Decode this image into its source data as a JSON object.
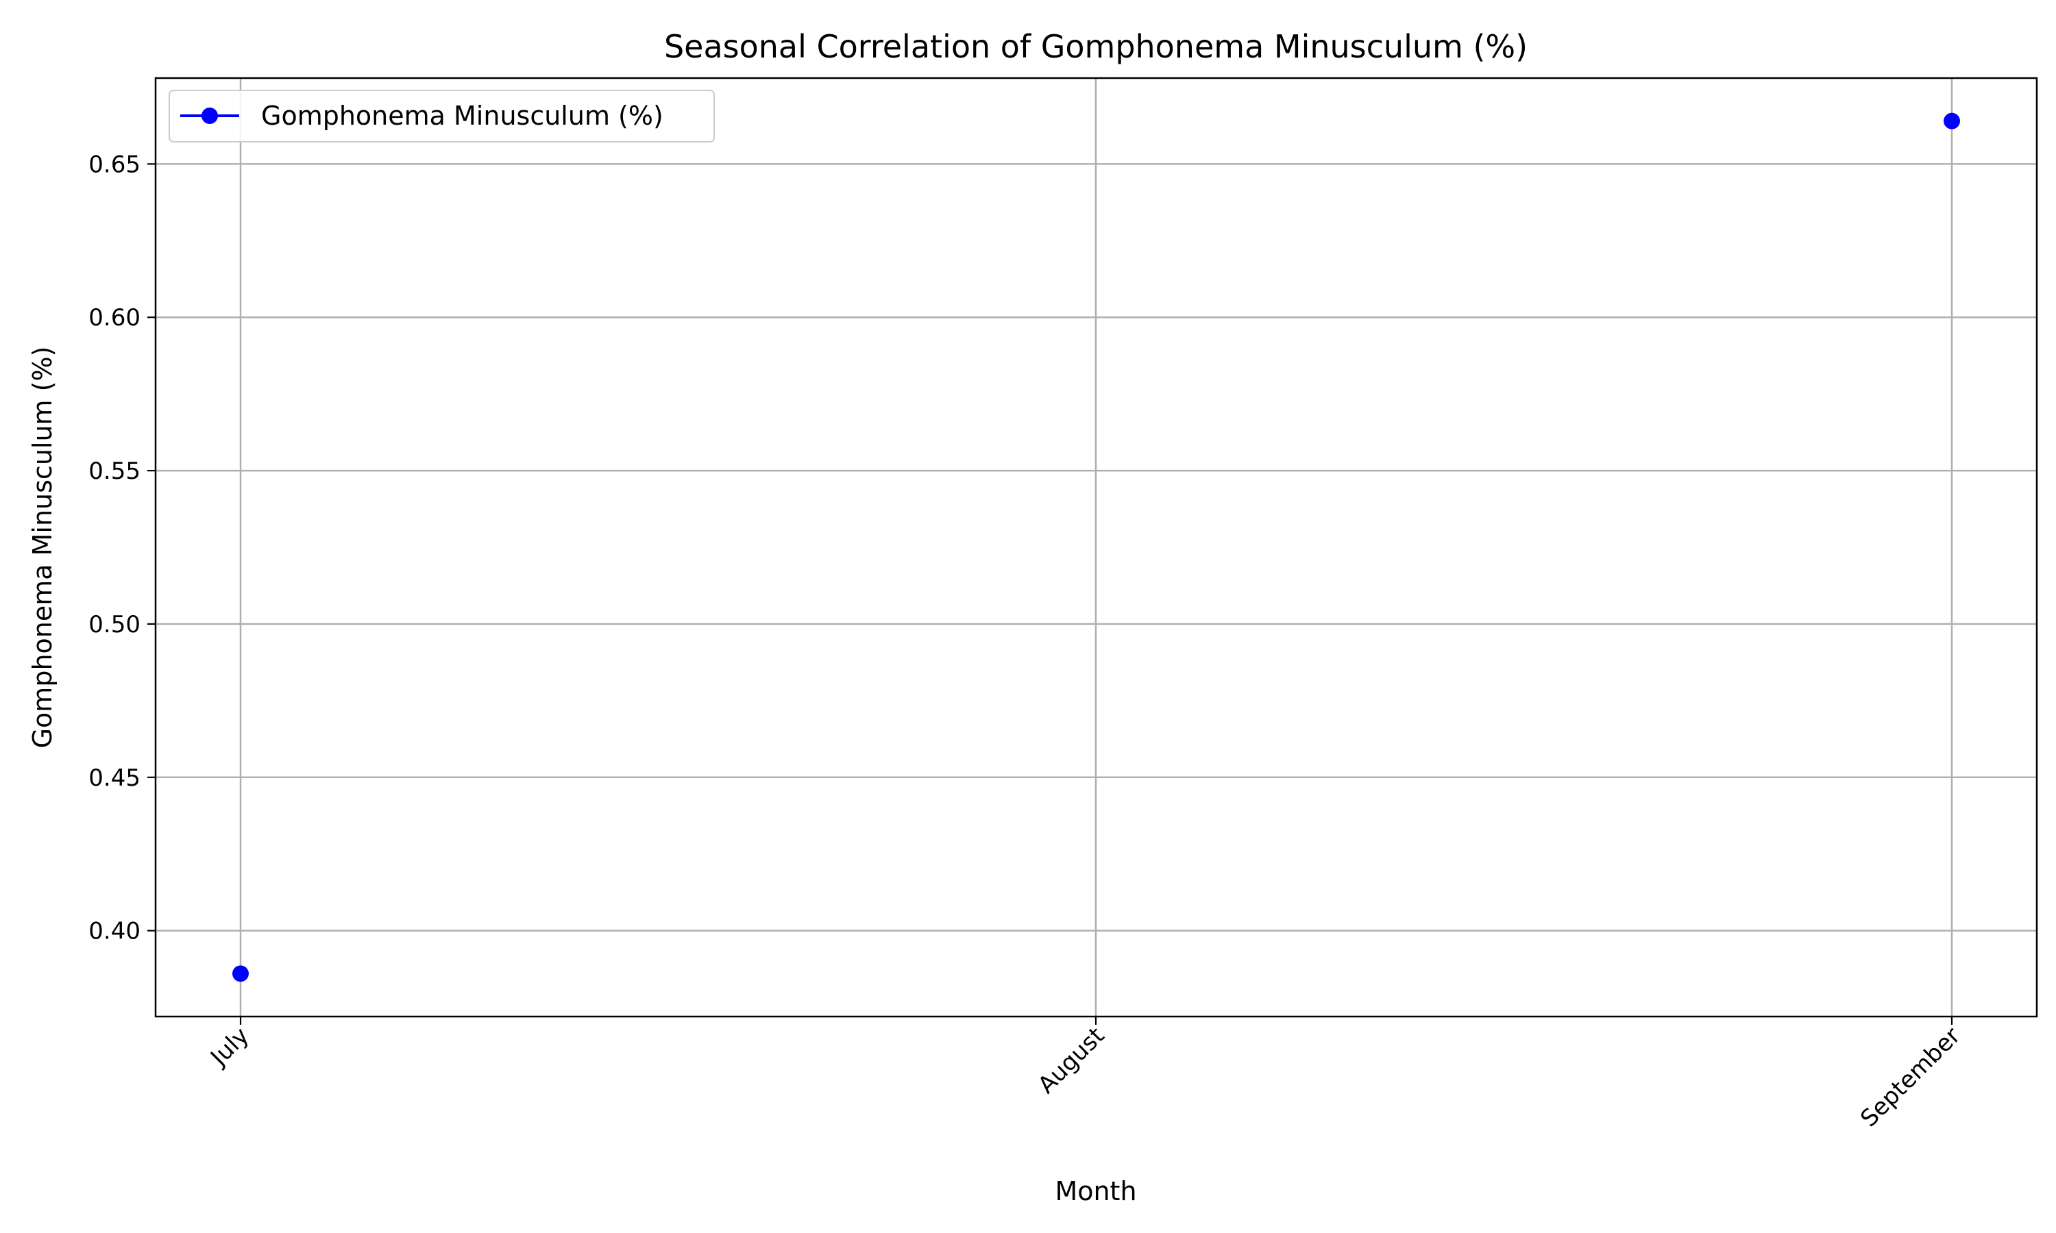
{
  "chart_data": {
    "type": "line",
    "title": "Seasonal Correlation of Gomphonema Minusculum (%)",
    "xlabel": "Month",
    "ylabel": "Gomphonema Minusculum (%)",
    "categories": [
      "July",
      "August",
      "September"
    ],
    "series": [
      {
        "name": "Gomphonema Minusculum (%)",
        "color": "#0000ff",
        "marker": "circle",
        "values": [
          0.386,
          null,
          0.664
        ]
      }
    ],
    "ylim": [
      0.372,
      0.678
    ],
    "yticks": [
      0.4,
      0.45,
      0.5,
      0.55,
      0.6,
      0.65
    ],
    "ytick_labels": [
      "0.40",
      "0.45",
      "0.50",
      "0.55",
      "0.60",
      "0.65"
    ],
    "xtick_rotation": 45,
    "grid": true,
    "legend": "upper-left"
  }
}
